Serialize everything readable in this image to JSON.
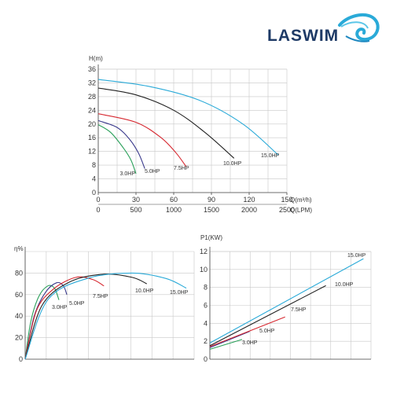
{
  "logo": {
    "text": "LASWIM"
  },
  "chart_data": [
    {
      "type": "line",
      "title": "",
      "ylabel": "H(m)",
      "xlabel": "Q(m³/h)",
      "xlabel_secondary": "Q(LPM)",
      "ylim": [
        0,
        36
      ],
      "xlim": [
        0,
        150
      ],
      "yticks": [
        0,
        4,
        8,
        12,
        16,
        20,
        24,
        28,
        32,
        36
      ],
      "xticks": [
        0,
        30,
        60,
        90,
        120,
        150
      ],
      "xticks_secondary": [
        0,
        500,
        1000,
        1500,
        2000,
        2500
      ],
      "grid": true,
      "series": [
        {
          "name": "3.0HP",
          "color": "#2aa05a",
          "x": [
            0,
            10,
            20,
            26,
            30
          ],
          "y": [
            19.8,
            17.5,
            13,
            9.5,
            5.5
          ]
        },
        {
          "name": "5.0HP",
          "color": "#3a3a8c",
          "x": [
            0,
            15,
            25,
            32,
            37
          ],
          "y": [
            21,
            19,
            15.5,
            11.5,
            7
          ]
        },
        {
          "name": "7.5HP",
          "color": "#d62830",
          "x": [
            0,
            30,
            50,
            62,
            70
          ],
          "y": [
            23,
            20.5,
            16,
            11.5,
            7.5
          ]
        },
        {
          "name": "10.0HP",
          "color": "#222222",
          "x": [
            0,
            30,
            60,
            85,
            108
          ],
          "y": [
            30.5,
            28.5,
            24,
            17.5,
            10
          ]
        },
        {
          "name": "15.0HP",
          "color": "#2aaad8",
          "x": [
            0,
            40,
            80,
            115,
            143
          ],
          "y": [
            33,
            31,
            27,
            20,
            11
          ]
        }
      ]
    },
    {
      "type": "line",
      "title": "",
      "ylabel": "η%",
      "xlabel": "",
      "ylim": [
        0,
        100
      ],
      "xlim": [
        0,
        150
      ],
      "yticks": [
        0,
        20,
        40,
        60,
        80
      ],
      "grid": true,
      "series": [
        {
          "name": "3.0HP",
          "color": "#2aa05a",
          "x": [
            0,
            5,
            12,
            20,
            26,
            30
          ],
          "y": [
            0,
            35,
            58,
            68,
            66,
            55
          ]
        },
        {
          "name": "5.0HP",
          "color": "#3a3a8c",
          "x": [
            0,
            8,
            18,
            28,
            34,
            37
          ],
          "y": [
            0,
            40,
            62,
            71,
            68,
            60
          ]
        },
        {
          "name": "7.5HP",
          "color": "#d62830",
          "x": [
            0,
            10,
            25,
            45,
            60,
            70
          ],
          "y": [
            0,
            45,
            65,
            76,
            74,
            68
          ]
        },
        {
          "name": "10.0HP",
          "color": "#222222",
          "x": [
            0,
            15,
            40,
            70,
            95,
            108
          ],
          "y": [
            0,
            50,
            72,
            79,
            76,
            70
          ]
        },
        {
          "name": "15.0HP",
          "color": "#2aaad8",
          "x": [
            0,
            20,
            55,
            95,
            125,
            143
          ],
          "y": [
            0,
            55,
            75,
            80,
            75,
            66
          ]
        }
      ]
    },
    {
      "type": "line",
      "title": "",
      "ylabel": "P1(KW)",
      "xlabel": "",
      "ylim": [
        0,
        12
      ],
      "xlim": [
        0,
        150
      ],
      "yticks": [
        0,
        2,
        4,
        6,
        8,
        10,
        12
      ],
      "grid": true,
      "series": [
        {
          "name": "3.0HP",
          "color": "#2aa05a",
          "x": [
            0,
            30
          ],
          "y": [
            1.1,
            2.2
          ]
        },
        {
          "name": "5.0HP",
          "color": "#3a3a8c",
          "x": [
            0,
            37
          ],
          "y": [
            1.3,
            3.1
          ]
        },
        {
          "name": "7.5HP",
          "color": "#d62830",
          "x": [
            0,
            70
          ],
          "y": [
            1.4,
            4.7
          ]
        },
        {
          "name": "10.0HP",
          "color": "#222222",
          "x": [
            0,
            108
          ],
          "y": [
            1.5,
            8.2
          ]
        },
        {
          "name": "15.0HP",
          "color": "#2aaad8",
          "x": [
            0,
            143
          ],
          "y": [
            1.8,
            11.2
          ]
        }
      ]
    }
  ]
}
